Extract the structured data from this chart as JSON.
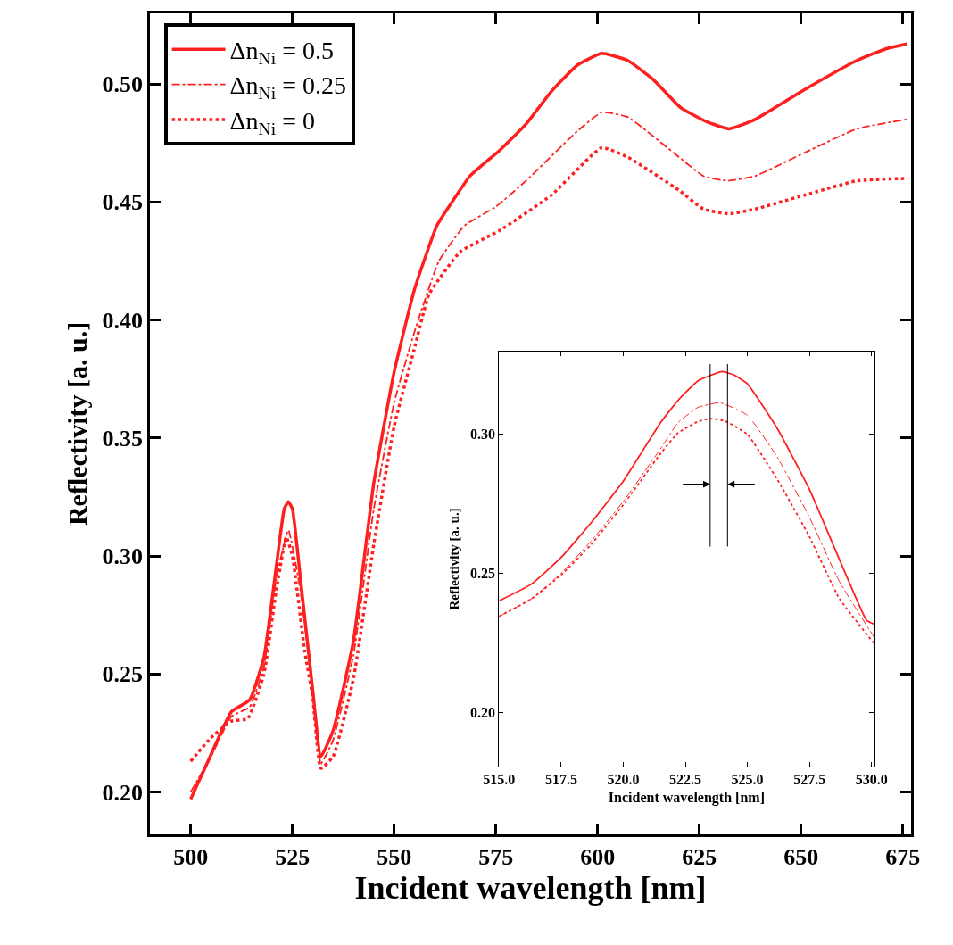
{
  "chart_data": [
    {
      "type": "line",
      "xlabel": "Incident wavelength [nm]",
      "ylabel": "Reflectivity [a. u.]",
      "xlim": [
        490,
        677
      ],
      "ylim": [
        0.182,
        0.53
      ],
      "xticks": [
        500,
        525,
        550,
        575,
        600,
        625,
        650,
        675
      ],
      "yticks": [
        {
          "value": 0.2,
          "label": "0.20"
        },
        {
          "value": 0.25,
          "label": "0.25"
        },
        {
          "value": 0.3,
          "label": "0.30"
        },
        {
          "value": 0.35,
          "label": "0.35"
        },
        {
          "value": 0.4,
          "label": "0.40"
        },
        {
          "value": 0.45,
          "label": "0.45"
        },
        {
          "value": 0.5,
          "label": "0.50"
        }
      ],
      "legend": "top left",
      "marker": "none",
      "series": [
        {
          "name": "Δn$_{Ni}$ = 0.5",
          "color": "#ff1f1f",
          "line_style": "solid",
          "x": [
            500,
            504,
            510,
            514.5,
            518,
            521,
            523,
            524,
            525,
            527,
            530,
            532,
            535,
            540,
            545,
            550,
            555,
            560.5,
            565,
            568.6,
            576,
            582.4,
            588.7,
            595,
            601,
            607.4,
            613.6,
            620.4,
            626.8,
            632.3,
            638.7,
            651.2,
            663.7,
            671,
            676
          ],
          "values": [
            0.197,
            0.212,
            0.234,
            0.239,
            0.257,
            0.295,
            0.32,
            0.323,
            0.32,
            0.29,
            0.243,
            0.215,
            0.226,
            0.264,
            0.331,
            0.378,
            0.413,
            0.44,
            0.452,
            0.461,
            0.472,
            0.483,
            0.497,
            0.508,
            0.513,
            0.51,
            0.502,
            0.49,
            0.484,
            0.481,
            0.485,
            0.498,
            0.51,
            0.515,
            0.517
          ]
        },
        {
          "name": "Δn$_{Ni}$ = 0.25",
          "color": "#ff1f1f",
          "line_style": "dashdot",
          "x": [
            500,
            505,
            510,
            514.5,
            518,
            521,
            524,
            527,
            530,
            532,
            535,
            540,
            545,
            550,
            555,
            561,
            567.3,
            575,
            582.4,
            595,
            601,
            607.4,
            620,
            626,
            632,
            638.7,
            651,
            663.7,
            676
          ],
          "values": [
            0.2,
            0.215,
            0.232,
            0.236,
            0.253,
            0.29,
            0.311,
            0.285,
            0.243,
            0.212,
            0.222,
            0.258,
            0.32,
            0.365,
            0.395,
            0.425,
            0.44,
            0.448,
            0.459,
            0.48,
            0.488,
            0.486,
            0.469,
            0.461,
            0.459,
            0.461,
            0.471,
            0.481,
            0.485
          ]
        },
        {
          "name": "Δn$_{Ni}$ = 0",
          "color": "#ff1f1f",
          "line_style": "dotted",
          "x": [
            500,
            505,
            510,
            514,
            518,
            521,
            523.5,
            525,
            528,
            530,
            532,
            535,
            540,
            545,
            550,
            555,
            558.6,
            566.3,
            576,
            588.7,
            601,
            607.4,
            620,
            626,
            632.3,
            638.7,
            651,
            663.7,
            676
          ],
          "values": [
            0.213,
            0.223,
            0.23,
            0.231,
            0.25,
            0.285,
            0.308,
            0.3,
            0.26,
            0.24,
            0.21,
            0.215,
            0.248,
            0.305,
            0.355,
            0.388,
            0.411,
            0.429,
            0.438,
            0.453,
            0.473,
            0.469,
            0.455,
            0.447,
            0.445,
            0.447,
            0.453,
            0.459,
            0.46
          ]
        }
      ]
    },
    {
      "type": "line",
      "xlabel": "Incident wavelength [nm]",
      "ylabel": "Reflectivity [a. u.]",
      "xlim": [
        515,
        530.1
      ],
      "ylim": [
        0.1805,
        0.3296
      ],
      "xticks": [
        {
          "value": 515,
          "label": "515.0"
        },
        {
          "value": 517.5,
          "label": "517.5"
        },
        {
          "value": 520,
          "label": "520.0"
        },
        {
          "value": 522.5,
          "label": "522.5"
        },
        {
          "value": 525,
          "label": "525.0"
        },
        {
          "value": 527.5,
          "label": "527.5"
        },
        {
          "value": 530,
          "label": "530.0"
        }
      ],
      "yticks": [
        {
          "value": 0.2,
          "label": "0.20"
        },
        {
          "value": 0.25,
          "label": "0.25"
        },
        {
          "value": 0.3,
          "label": "0.30"
        }
      ],
      "legend": false,
      "marker": "none",
      "ref_lines": [
        {
          "axis": "x",
          "value": 523.5,
          "color": "#000000"
        },
        {
          "axis": "x",
          "value": 524.2,
          "color": "#000000"
        }
      ],
      "series": [
        {
          "color": "#ff1f1f",
          "line_style": "solid",
          "x": [
            515,
            516.3,
            517.5,
            518.7,
            520,
            521.5,
            522.2,
            523,
            523.5,
            524,
            524.5,
            525,
            526.2,
            527.5,
            528.7,
            529.8,
            530.1
          ],
          "values": [
            0.24,
            0.246,
            0.2556,
            0.268,
            0.283,
            0.304,
            0.312,
            0.319,
            0.321,
            0.3224,
            0.321,
            0.318,
            0.302,
            0.28,
            0.255,
            0.233,
            0.2316
          ]
        },
        {
          "color": "#ff1f1f",
          "line_style": "dashdot",
          "x": [
            515,
            516.3,
            517.5,
            518.7,
            520,
            521.5,
            522.2,
            523,
            523.9,
            525,
            526.2,
            527.5,
            528.7,
            530.1
          ],
          "values": [
            0.2344,
            0.2407,
            0.2499,
            0.2614,
            0.2757,
            0.2946,
            0.304,
            0.3095,
            0.3112,
            0.3067,
            0.2917,
            0.27,
            0.247,
            0.227
          ]
        },
        {
          "color": "#ff1f1f",
          "line_style": "dotted",
          "x": [
            515,
            516.3,
            517.5,
            518.7,
            520,
            521.5,
            522.2,
            523,
            523.5,
            524.1,
            525,
            526.2,
            527.5,
            528.7,
            530.1
          ],
          "values": [
            0.2344,
            0.2407,
            0.2493,
            0.2602,
            0.2745,
            0.2929,
            0.3003,
            0.3044,
            0.3055,
            0.3046,
            0.2998,
            0.2837,
            0.263,
            0.2409,
            0.2247
          ]
        }
      ]
    }
  ]
}
